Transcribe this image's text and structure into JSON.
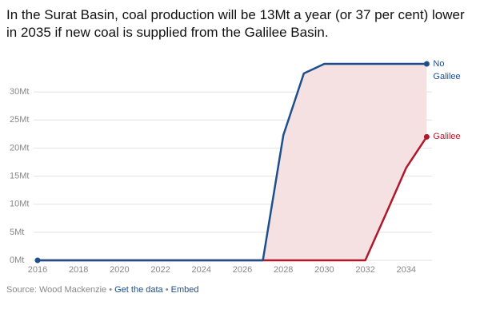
{
  "chart_data": {
    "type": "line",
    "title": "In the Surat Basin, coal production will be 13Mt a year (or 37 per cent) lower in 2035 if new coal is supplied from the Galilee Basin.",
    "x": [
      2016,
      2017,
      2018,
      2019,
      2020,
      2021,
      2022,
      2023,
      2024,
      2025,
      2026,
      2027,
      2028,
      2029,
      2030,
      2031,
      2032,
      2033,
      2034,
      2035
    ],
    "series": [
      {
        "name": "No Galilee",
        "color": "#1d4f8b",
        "values": [
          0,
          0,
          0,
          0,
          0,
          0,
          0,
          0,
          0,
          0,
          0,
          0,
          22.3,
          33.3,
          35,
          35,
          35,
          35,
          35,
          35
        ]
      },
      {
        "name": "Galilee",
        "color": "#b0172a",
        "values": [
          0,
          0,
          0,
          0,
          0,
          0,
          0,
          0,
          0,
          0,
          0,
          0,
          0,
          0,
          0,
          0,
          0,
          8.2,
          16.5,
          22
        ]
      }
    ],
    "area_color": "#f6e1e2",
    "xlim": [
      2016,
      2035
    ],
    "xticks": [
      2016,
      2018,
      2020,
      2022,
      2024,
      2026,
      2028,
      2030,
      2032,
      2034
    ],
    "ylim": [
      0,
      35
    ],
    "yticks": [
      {
        "value": 0,
        "label": "0Mt"
      },
      {
        "value": 5,
        "label": "5Mt"
      },
      {
        "value": 10,
        "label": "10Mt"
      },
      {
        "value": 15,
        "label": "15Mt"
      },
      {
        "value": 20,
        "label": "20Mt"
      },
      {
        "value": 25,
        "label": "25Mt"
      },
      {
        "value": 30,
        "label": "30Mt"
      }
    ],
    "grid": true,
    "footer": {
      "source": "Source: Wood Mackenzie",
      "separator": "•",
      "links": [
        "Get the data",
        "Embed"
      ]
    }
  }
}
